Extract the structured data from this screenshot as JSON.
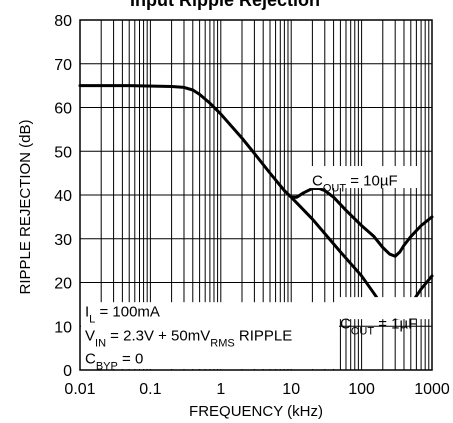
{
  "chart_data": {
    "type": "line",
    "title": "Input Ripple Rejection",
    "xlabel": "FREQUENCY (kHz)",
    "ylabel": "RIPPLE REJECTION (dB)",
    "x_scale": "log",
    "xlim": [
      0.01,
      1000
    ],
    "ylim": [
      0,
      80
    ],
    "x_ticks": [
      0.01,
      0.1,
      1,
      10,
      100,
      1000
    ],
    "x_tick_labels": [
      "0.01",
      "0.1",
      "1",
      "10",
      "100",
      "1000"
    ],
    "y_ticks": [
      0,
      10,
      20,
      30,
      40,
      50,
      60,
      70,
      80
    ],
    "y_tick_labels": [
      "0",
      "10",
      "20",
      "30",
      "40",
      "50",
      "60",
      "70",
      "80"
    ],
    "grid": true,
    "line_color": "#000000",
    "series": [
      {
        "name": "COUT = 10µF",
        "label_main": "C",
        "label_sub": "OUT",
        "label_rest": " = 10µF",
        "points": [
          [
            0.01,
            65
          ],
          [
            0.05,
            65
          ],
          [
            0.2,
            64.8
          ],
          [
            0.3,
            64.6
          ],
          [
            0.4,
            64
          ],
          [
            0.5,
            63
          ],
          [
            0.7,
            61
          ],
          [
            1,
            58.5
          ],
          [
            2,
            53
          ],
          [
            3,
            49.5
          ],
          [
            5,
            45
          ],
          [
            8,
            41
          ],
          [
            10,
            39.5
          ],
          [
            12,
            39.5
          ],
          [
            15,
            40.5
          ],
          [
            20,
            41.5
          ],
          [
            25,
            41.5
          ],
          [
            30,
            41
          ],
          [
            40,
            39.5
          ],
          [
            60,
            36.5
          ],
          [
            100,
            33
          ],
          [
            150,
            30.5
          ],
          [
            200,
            28
          ],
          [
            250,
            26.5
          ],
          [
            300,
            26
          ],
          [
            350,
            27
          ],
          [
            400,
            28.5
          ],
          [
            500,
            30.5
          ],
          [
            700,
            33
          ],
          [
            1000,
            35
          ]
        ]
      },
      {
        "name": "COUT = 1µF",
        "label_main": "C",
        "label_sub": "OUT",
        "label_rest": " = 1µF",
        "points": [
          [
            10,
            39.5
          ],
          [
            20,
            34.5
          ],
          [
            50,
            27
          ],
          [
            100,
            21.5
          ],
          [
            150,
            17.5
          ],
          [
            200,
            14.5
          ],
          [
            250,
            12.5
          ],
          [
            300,
            11.8
          ],
          [
            350,
            12
          ],
          [
            400,
            13
          ],
          [
            500,
            15
          ],
          [
            700,
            18.5
          ],
          [
            1000,
            21.5
          ]
        ]
      }
    ],
    "conditions": [
      {
        "main": "I",
        "sub": "L",
        "rest": " = 100mA"
      },
      {
        "main": "V",
        "sub": "IN",
        "rest": " = 2.3V + 50mV",
        "sub2": "RMS",
        "rest2": " RIPPLE"
      },
      {
        "main": "C",
        "sub": "BYP",
        "rest": " = 0"
      }
    ]
  }
}
